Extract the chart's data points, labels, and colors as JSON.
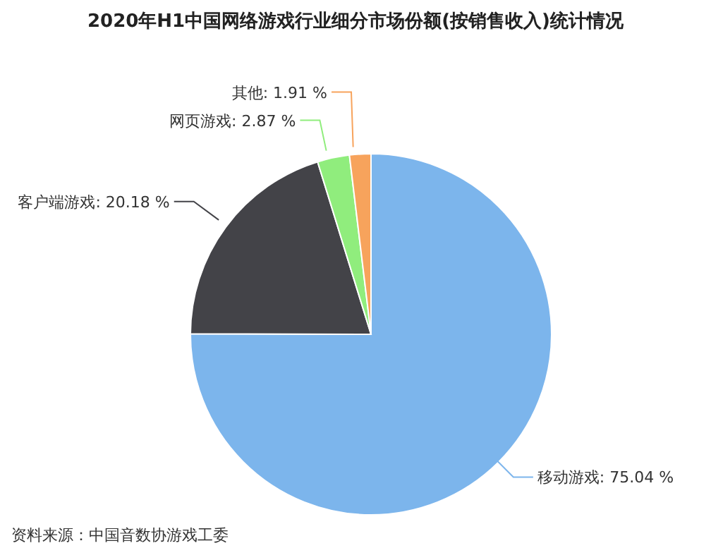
{
  "chart_data": {
    "type": "pie",
    "title": "2020年H1中国网络游戏行业细分市场份额(按销售收入)统计情况",
    "categories": [
      "移动游戏",
      "客户端游戏",
      "网页游戏",
      "其他"
    ],
    "values": [
      75.04,
      20.18,
      2.87,
      1.91
    ],
    "value_labels": [
      "75.04 %",
      "20.18 %",
      "2.87 %",
      "1.91 %"
    ],
    "colors": [
      "#7cb5ec",
      "#434348",
      "#90ed7d",
      "#f7a35c"
    ],
    "legend": false,
    "annotations": [
      "资料来源：中国音数协游戏工委"
    ]
  }
}
